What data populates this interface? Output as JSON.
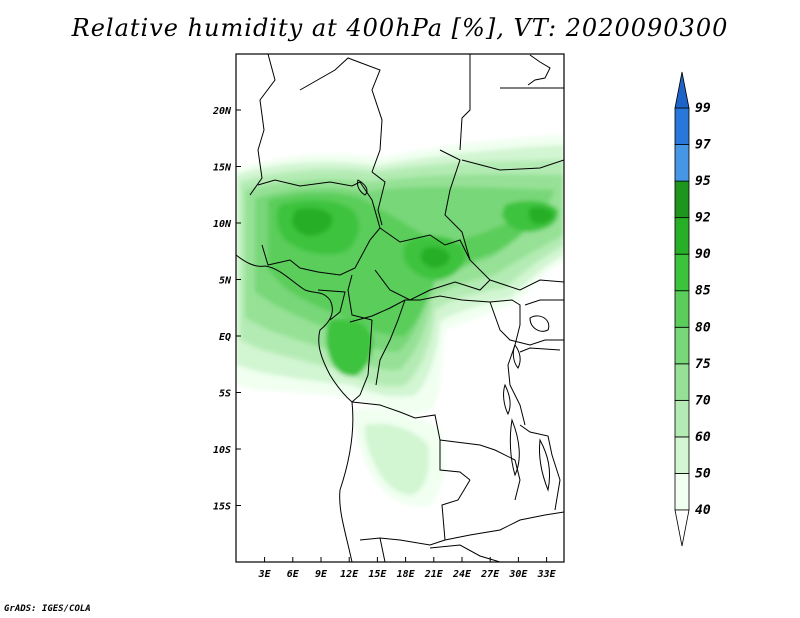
{
  "title": "Relative humidity at 400hPa [%], VT: 2020090300",
  "credit": "GrADS: IGES/COLA",
  "map": {
    "variable": "Relative humidity",
    "level": "400hPa",
    "units": "%",
    "valid_time": "2020090300",
    "lon_range": [
      0,
      34
    ],
    "lat_range": [
      -20,
      24
    ],
    "lat_ticks": [
      "20N",
      "15N",
      "10N",
      "5N",
      "EQ",
      "5S",
      "10S",
      "15S"
    ],
    "lon_ticks": [
      "3E",
      "6E",
      "9E",
      "12E",
      "15E",
      "18E",
      "21E",
      "24E",
      "27E",
      "30E",
      "33E"
    ]
  },
  "colorbar": {
    "levels": [
      "40",
      "50",
      "60",
      "70",
      "75",
      "80",
      "85",
      "90",
      "92",
      "95",
      "97",
      "99"
    ],
    "colors": [
      "#f0fff0",
      "#d2f5d2",
      "#b4ebb4",
      "#96e196",
      "#78d778",
      "#5acd5a",
      "#3cc33c",
      "#28af28",
      "#1e961e",
      "#4696e6",
      "#2878dc",
      "#1e5ac8"
    ],
    "top_arrow_color": "#1e64c8",
    "bottom_arrow_color": "#ffffff"
  }
}
